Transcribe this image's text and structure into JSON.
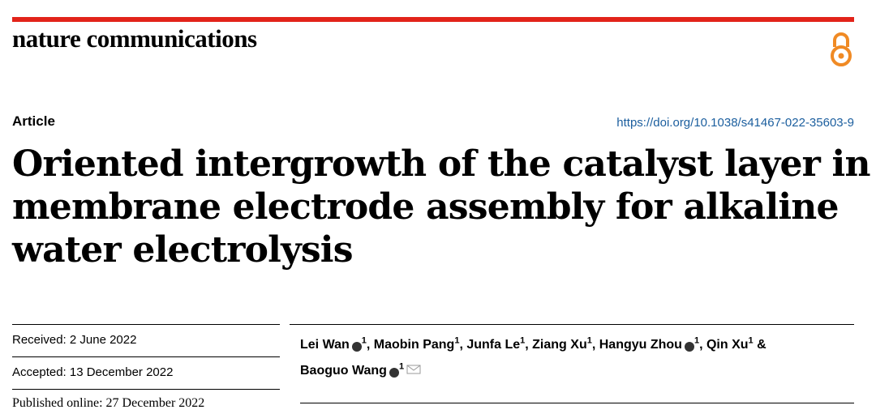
{
  "header": {
    "journal": "nature communications",
    "section": "Article",
    "doi": "https://doi.org/10.1038/s41467-022-35603-9"
  },
  "title": {
    "lines": [
      "Oriented intergrowth of the catalyst layer in",
      "membrane electrode assembly for alkaline",
      "water electrolysis"
    ]
  },
  "dates": {
    "received": "Received: 2 June 2022",
    "accepted": "Accepted: 13 December 2022",
    "published": "Published online: 27 December 2022"
  },
  "authors": [
    {
      "name": "Lei Wan",
      "orcid": true,
      "affiliation": "1",
      "after": ", "
    },
    {
      "name": "Maobin Pang",
      "orcid": false,
      "affiliation": "1",
      "after": ", "
    },
    {
      "name": "Junfa Le",
      "orcid": false,
      "affiliation": "1",
      "after": ", "
    },
    {
      "name": "Ziang Xu",
      "orcid": false,
      "affiliation": "1",
      "after": ", "
    },
    {
      "name": "Hangyu Zhou",
      "orcid": true,
      "affiliation": "1",
      "after": ", "
    },
    {
      "name": "Qin Xu",
      "orcid": false,
      "affiliation": "1",
      "after": " &"
    },
    {
      "name": "Baoguo Wang",
      "orcid": true,
      "affiliation": "1",
      "after": ""
    }
  ]
}
